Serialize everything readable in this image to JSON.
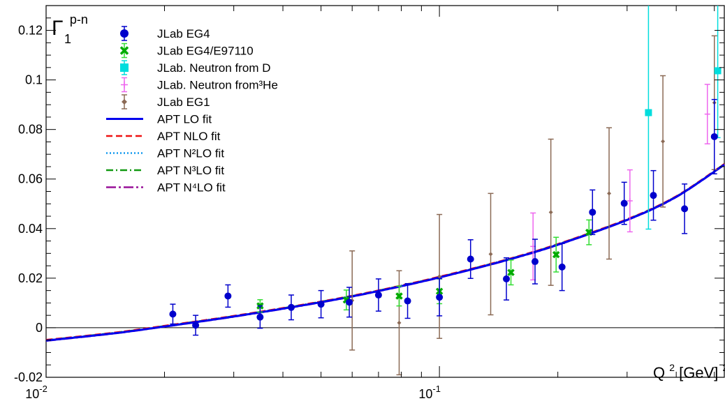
{
  "chart_data": {
    "type": "scatter",
    "x_scale": "log",
    "y_scale": "linear",
    "xlim": [
      0.01,
      0.53
    ],
    "ylim": [
      -0.02,
      0.13
    ],
    "grid": false,
    "legend_position": "top-left",
    "title": {
      "base": "Γ",
      "sup": "p-n",
      "sub": "1"
    },
    "xlabel": {
      "base1": "Q",
      "sup1": "2",
      "base2": " [GeV]",
      "sup2": "2"
    },
    "y_ticks": [
      {
        "value": -0.02,
        "label": "-0.02"
      },
      {
        "value": 0,
        "label": "0"
      },
      {
        "value": 0.02,
        "label": "0.02"
      },
      {
        "value": 0.04,
        "label": "0.04"
      },
      {
        "value": 0.06,
        "label": "0.06"
      },
      {
        "value": 0.08,
        "label": "0.08"
      },
      {
        "value": 0.1,
        "label": "0.1"
      },
      {
        "value": 0.12,
        "label": "0.12"
      }
    ],
    "x_ticks": [
      {
        "value": 0.01,
        "base": "10",
        "exp": "-2"
      },
      {
        "value": 0.1,
        "base": "10",
        "exp": "-1"
      }
    ],
    "series": [
      {
        "name": "JLab EG4",
        "color": "#0000cc",
        "marker": "circle",
        "points": [
          [
            0.021,
            0.0055,
            0.004
          ],
          [
            0.024,
            0.001,
            0.004
          ],
          [
            0.029,
            0.0128,
            0.0045
          ],
          [
            0.035,
            0.0043,
            0.0045
          ],
          [
            0.042,
            0.0082,
            0.005
          ],
          [
            0.05,
            0.0095,
            0.0055
          ],
          [
            0.059,
            0.0103,
            0.006
          ],
          [
            0.07,
            0.0132,
            0.0065
          ],
          [
            0.083,
            0.0108,
            0.007
          ],
          [
            0.1,
            0.0123,
            0.0075
          ],
          [
            0.12,
            0.0277,
            0.0078
          ],
          [
            0.148,
            0.0197,
            0.0085
          ],
          [
            0.175,
            0.0267,
            0.009
          ],
          [
            0.205,
            0.0245,
            0.0095
          ],
          [
            0.245,
            0.0466,
            0.009
          ],
          [
            0.295,
            0.0502,
            0.0085
          ],
          [
            0.35,
            0.0534,
            0.01
          ],
          [
            0.42,
            0.048,
            0.01
          ],
          [
            0.5,
            0.0771,
            0.015
          ]
        ]
      },
      {
        "name": "JLab EG4/E97110",
        "color": "#00aa00",
        "errcolor": "#33dd33",
        "marker": "cross",
        "points": [
          [
            0.035,
            0.0088,
            0.0025
          ],
          [
            0.058,
            0.0112,
            0.004
          ],
          [
            0.079,
            0.0128,
            0.004
          ],
          [
            0.1,
            0.0147,
            0.005
          ],
          [
            0.152,
            0.0223,
            0.005
          ],
          [
            0.198,
            0.0295,
            0.007
          ],
          [
            0.24,
            0.0385,
            0.005
          ]
        ]
      },
      {
        "name": "JLab. Neutron from D",
        "color": "#00dddd",
        "marker": "square",
        "points": [
          [
            0.34,
            0.0868,
            0.047
          ],
          [
            0.51,
            0.1037,
            0.027
          ]
        ]
      },
      {
        "name": "JLab. Neutron from³He",
        "color": "#ee66ee",
        "marker": "star",
        "points": [
          [
            0.173,
            0.0328,
            0.0135
          ],
          [
            0.305,
            0.0512,
            0.0125
          ],
          [
            0.48,
            0.0862,
            0.012
          ]
        ]
      },
      {
        "name": "JLab EG1",
        "color": "#8b6a55",
        "marker": "diamond",
        "points": [
          [
            0.06,
            0.011,
            0.02
          ],
          [
            0.079,
            0.002,
            0.021
          ],
          [
            0.1,
            0.0207,
            0.025
          ],
          [
            0.135,
            0.0297,
            0.0245
          ],
          [
            0.192,
            0.0466,
            0.0295
          ],
          [
            0.27,
            0.0542,
            0.0265
          ],
          [
            0.37,
            0.0752,
            0.0265
          ],
          [
            0.5,
            0.0908,
            0.027
          ]
        ]
      }
    ],
    "fits": [
      {
        "name": "APT LO fit",
        "color": "#0000ee",
        "dash": "",
        "width": 3
      },
      {
        "name": "APT NLO fit",
        "color": "#ee1111",
        "dash": "9,5",
        "width": 2.5
      },
      {
        "name": "APT N²LO fit",
        "color": "#1199ee",
        "dash": "2,3",
        "width": 2.5
      },
      {
        "name": "APT N³LO fit",
        "color": "#119911",
        "dash": "10,4,2,4",
        "width": 2.5
      },
      {
        "name": "APT N⁴LO fit",
        "color": "#991199",
        "dash": "14,4,3,4",
        "width": 2.5
      }
    ],
    "fit_curve": {
      "x": [
        0.01,
        0.015,
        0.02,
        0.03,
        0.05,
        0.07,
        0.1,
        0.15,
        0.2,
        0.3,
        0.4,
        0.53
      ],
      "y": [
        -0.0052,
        -0.0022,
        0.0005,
        0.0045,
        0.0103,
        0.0148,
        0.0203,
        0.0275,
        0.0335,
        0.0435,
        0.0528,
        0.0658
      ]
    }
  }
}
